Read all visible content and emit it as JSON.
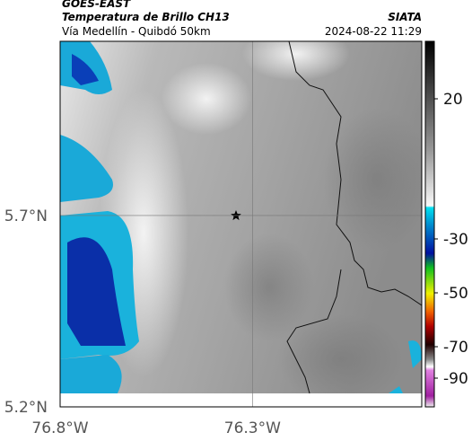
{
  "header": {
    "title": "GOES-EAST",
    "subtitle": "Temperatura de Brillo CH13",
    "source": "SIATA",
    "location": "Vía Medellín - Quibdó 50km",
    "datetime": "2024-08-22 11:29"
  },
  "map": {
    "xlim": [
      -76.8,
      -75.86
    ],
    "ylim": [
      5.2,
      6.155
    ],
    "xticks": [
      {
        "value": -76.8,
        "label": "76.8°W"
      },
      {
        "value": -76.3,
        "label": "76.3°W"
      }
    ],
    "yticks": [
      {
        "value": 5.7,
        "label": "5.7°N"
      },
      {
        "value": 5.2,
        "label": "5.2°N"
      }
    ]
  },
  "colorbar": {
    "ticks": [
      20,
      -30,
      -50,
      -70,
      -90
    ]
  }
}
